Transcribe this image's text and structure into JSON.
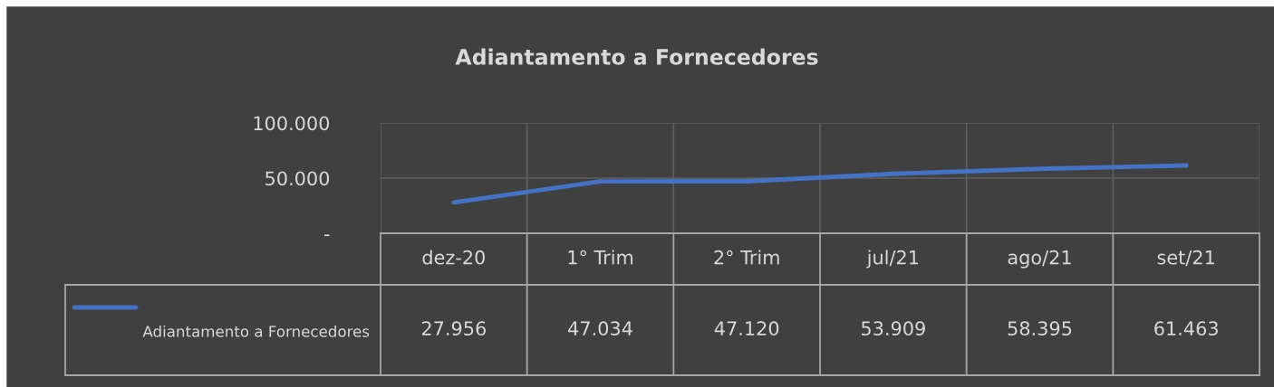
{
  "chart_data": {
    "type": "line",
    "title": "Adiantamento a Fornecedores",
    "categories": [
      "dez-20",
      "1° Trim",
      "2° Trim",
      "jul/21",
      "ago/21",
      "set/21"
    ],
    "series": [
      {
        "name": "Adiantamento a Fornecedores",
        "color": "#4472c4",
        "values": [
          27956,
          47034,
          47120,
          53909,
          58395,
          61463
        ],
        "value_labels": [
          "27.956",
          "47.034",
          "47.120",
          "53.909",
          "58.395",
          "61.463"
        ]
      }
    ],
    "ylim": [
      0,
      100000
    ],
    "yticks": [
      {
        "value": 0,
        "label": "-"
      },
      {
        "value": 50000,
        "label": "50.000"
      },
      {
        "value": 100000,
        "label": "100.000"
      }
    ],
    "grid": "y",
    "legend": "bottom left",
    "marker": "none",
    "line_style": "solid"
  }
}
